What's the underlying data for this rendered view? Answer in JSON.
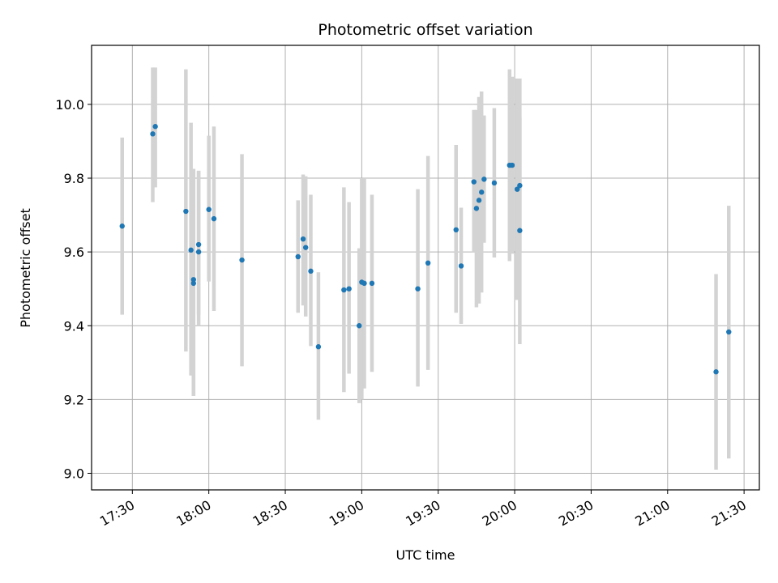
{
  "chart_data": {
    "type": "scatter",
    "title": "Photometric offset variation",
    "xlabel": "UTC time",
    "ylabel": "Photometric offset",
    "xlim": [
      "17:14",
      "21:36"
    ],
    "ylim": [
      8.955,
      10.16
    ],
    "x_ticks": [
      "17:30",
      "18:00",
      "18:30",
      "19:00",
      "19:30",
      "20:00",
      "20:30",
      "21:00",
      "21:30"
    ],
    "y_ticks": [
      9.0,
      9.2,
      9.4,
      9.6,
      9.8,
      10.0
    ],
    "y_tick_labels": [
      "9.0",
      "9.2",
      "9.4",
      "9.6",
      "9.8",
      "10.0"
    ],
    "grid": true,
    "point_color": "#1f77b4",
    "errorbar_color": "#d3d3d3",
    "points": [
      {
        "x": "17:26",
        "y": 9.67,
        "lo": 9.43,
        "hi": 9.91
      },
      {
        "x": "17:38",
        "y": 9.92,
        "lo": 9.735,
        "hi": 10.1
      },
      {
        "x": "17:39",
        "y": 9.94,
        "lo": 9.775,
        "hi": 10.1
      },
      {
        "x": "17:51",
        "y": 9.71,
        "lo": 9.33,
        "hi": 10.095
      },
      {
        "x": "17:53",
        "y": 9.605,
        "lo": 9.265,
        "hi": 9.95
      },
      {
        "x": "17:54",
        "y": 9.525,
        "lo": 9.21,
        "hi": 9.825
      },
      {
        "x": "17:54",
        "y": 9.515,
        "lo": 9.21,
        "hi": 9.825
      },
      {
        "x": "17:56",
        "y": 9.62,
        "lo": 9.43,
        "hi": 9.82
      },
      {
        "x": "17:56",
        "y": 9.6,
        "lo": 9.4,
        "hi": 9.82
      },
      {
        "x": "18:00",
        "y": 9.715,
        "lo": 9.52,
        "hi": 9.915
      },
      {
        "x": "18:02",
        "y": 9.69,
        "lo": 9.44,
        "hi": 9.94
      },
      {
        "x": "18:13",
        "y": 9.578,
        "lo": 9.29,
        "hi": 9.865
      },
      {
        "x": "18:35",
        "y": 9.587,
        "lo": 9.435,
        "hi": 9.74
      },
      {
        "x": "18:37",
        "y": 9.635,
        "lo": 9.455,
        "hi": 9.81
      },
      {
        "x": "18:38",
        "y": 9.612,
        "lo": 9.425,
        "hi": 9.805
      },
      {
        "x": "18:40",
        "y": 9.548,
        "lo": 9.345,
        "hi": 9.755
      },
      {
        "x": "18:43",
        "y": 9.343,
        "lo": 9.145,
        "hi": 9.545
      },
      {
        "x": "18:53",
        "y": 9.497,
        "lo": 9.22,
        "hi": 9.775
      },
      {
        "x": "18:55",
        "y": 9.5,
        "lo": 9.27,
        "hi": 9.735
      },
      {
        "x": "18:59",
        "y": 9.4,
        "lo": 9.19,
        "hi": 9.61
      },
      {
        "x": "19:00",
        "y": 9.518,
        "lo": 9.2,
        "hi": 9.8
      },
      {
        "x": "19:01",
        "y": 9.515,
        "lo": 9.23,
        "hi": 9.8
      },
      {
        "x": "19:04",
        "y": 9.515,
        "lo": 9.275,
        "hi": 9.755
      },
      {
        "x": "19:22",
        "y": 9.5,
        "lo": 9.235,
        "hi": 9.77
      },
      {
        "x": "19:26",
        "y": 9.57,
        "lo": 9.28,
        "hi": 9.86
      },
      {
        "x": "19:37",
        "y": 9.66,
        "lo": 9.435,
        "hi": 9.89
      },
      {
        "x": "19:39",
        "y": 9.562,
        "lo": 9.405,
        "hi": 9.72
      },
      {
        "x": "19:44",
        "y": 9.79,
        "lo": 9.6,
        "hi": 9.985
      },
      {
        "x": "19:45",
        "y": 9.718,
        "lo": 9.45,
        "hi": 9.985
      },
      {
        "x": "19:46",
        "y": 9.74,
        "lo": 9.46,
        "hi": 10.02
      },
      {
        "x": "19:47",
        "y": 9.762,
        "lo": 9.49,
        "hi": 10.035
      },
      {
        "x": "19:48",
        "y": 9.797,
        "lo": 9.625,
        "hi": 9.97
      },
      {
        "x": "19:52",
        "y": 9.787,
        "lo": 9.585,
        "hi": 9.99
      },
      {
        "x": "19:58",
        "y": 9.835,
        "lo": 9.575,
        "hi": 10.095
      },
      {
        "x": "19:59",
        "y": 9.835,
        "lo": 9.595,
        "hi": 10.075
      },
      {
        "x": "20:01",
        "y": 9.77,
        "lo": 9.47,
        "hi": 10.07
      },
      {
        "x": "20:02",
        "y": 9.78,
        "lo": 9.6,
        "hi": 10.07
      },
      {
        "x": "20:02",
        "y": 9.658,
        "lo": 9.35,
        "hi": 9.965
      },
      {
        "x": "21:19",
        "y": 9.275,
        "lo": 9.01,
        "hi": 9.54
      },
      {
        "x": "21:24",
        "y": 9.383,
        "lo": 9.04,
        "hi": 9.725
      }
    ]
  }
}
